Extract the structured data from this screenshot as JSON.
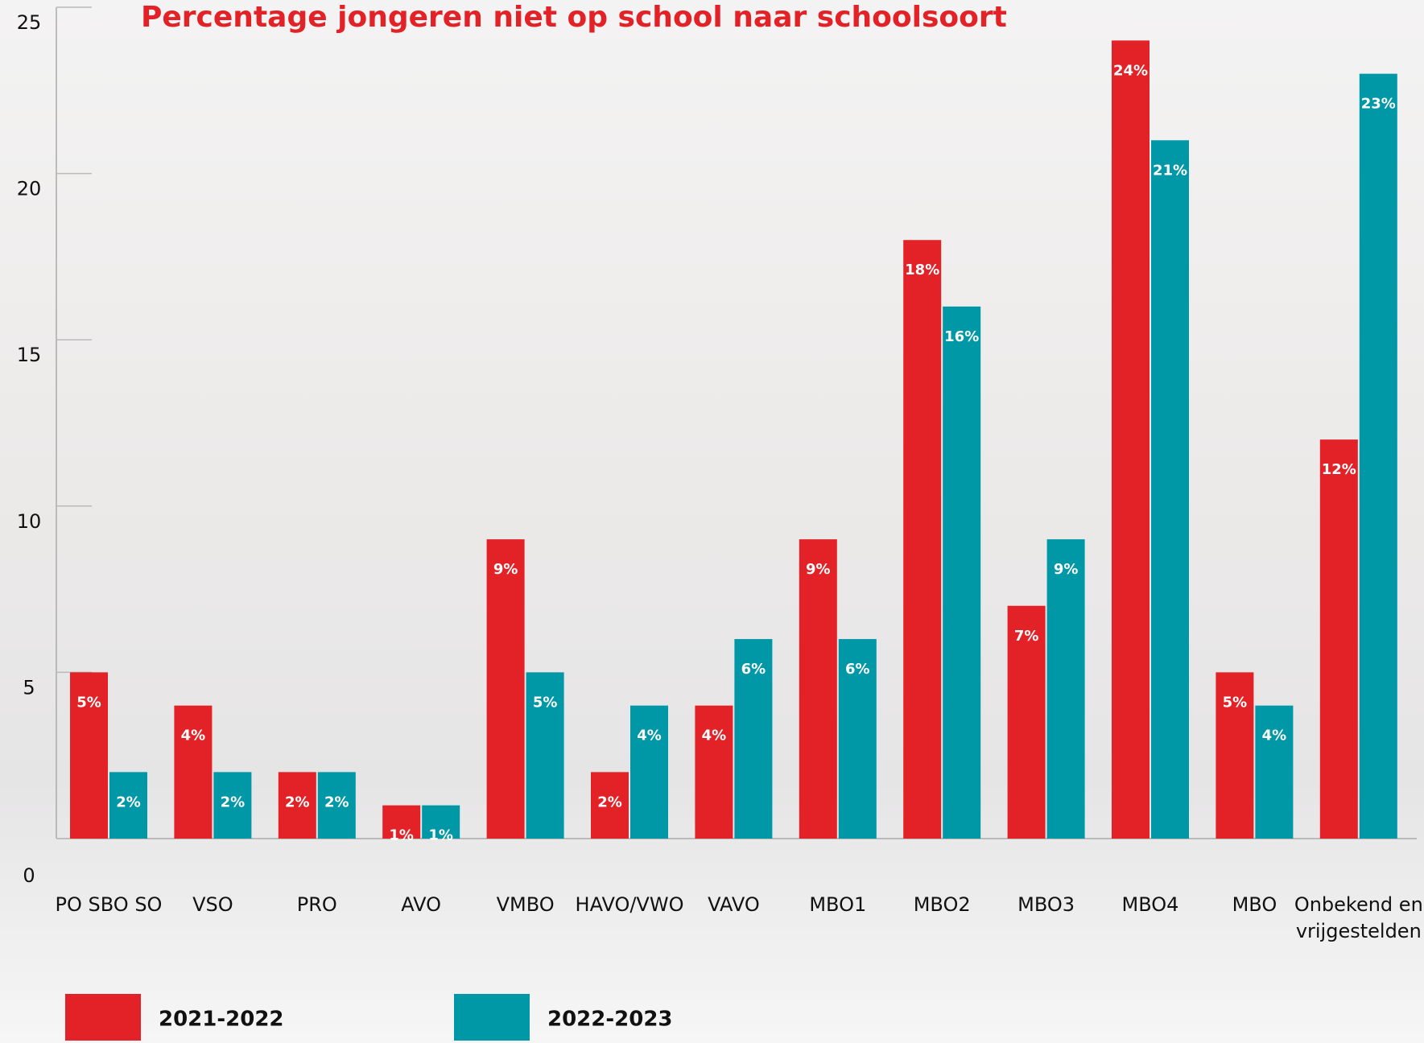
{
  "chart_data": {
    "type": "bar",
    "title": "Percentage jongeren niet op school naar schoolsoort",
    "categories": [
      "PO SBO SO",
      "VSO",
      "PRO",
      "AVO",
      "VMBO",
      "HAVO/VWO",
      "VAVO",
      "MBO1",
      "MBO2",
      "MBO3",
      "MBO4",
      "MBO",
      "Onbekend en vrijgestelden"
    ],
    "series": [
      {
        "name": "2021-2022",
        "color": "#e32227",
        "values": [
          5,
          4,
          2,
          1,
          9,
          2,
          4,
          9,
          18,
          7,
          24,
          5,
          12
        ],
        "value_labels": [
          "5%",
          "4%",
          "2%",
          "1%",
          "9%",
          "2%",
          "4%",
          "9%",
          "18%",
          "7%",
          "24%",
          "5%",
          "12%"
        ]
      },
      {
        "name": "2022-2023",
        "color": "#0097a7",
        "values": [
          2,
          2,
          2,
          1,
          5,
          4,
          6,
          6,
          16,
          9,
          21,
          4,
          23
        ],
        "value_labels": [
          "2%",
          "2%",
          "2%",
          "1%",
          "5%",
          "4%",
          "6%",
          "6%",
          "16%",
          "9%",
          "21%",
          "4%",
          "23%"
        ]
      }
    ],
    "ylim": [
      0,
      25
    ],
    "yticks": [
      0,
      5,
      10,
      15,
      20,
      25
    ]
  }
}
